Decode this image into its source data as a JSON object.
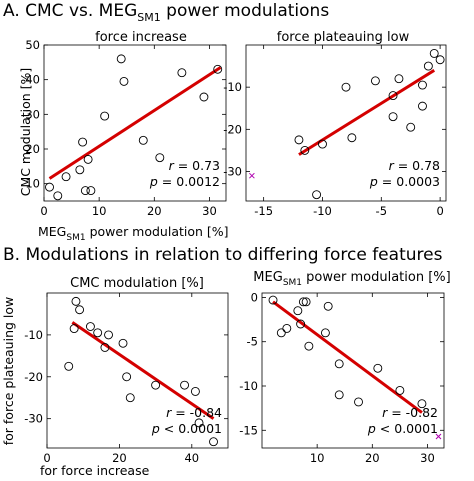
{
  "section_a_title": "A. CMC vs. MEG",
  "section_a_sub": "SM1",
  "section_a_title_rest": " power modulations",
  "section_b_title": "B. Modulations in relation to differing force features",
  "ylabel_a": "CMC modulation [%]",
  "xlabel_a_main": "MEG",
  "xlabel_a_sub": "SM1",
  "xlabel_a_rest": " power modulation [%]",
  "ylabel_b_line1": "for force plateauing low",
  "xlabel_b": "for force increase",
  "chart_data": [
    {
      "id": "a1",
      "type": "scatter",
      "title": "force increase",
      "xlim": [
        0,
        33
      ],
      "ylim": [
        5,
        50
      ],
      "xticks": [
        0,
        10,
        20,
        30
      ],
      "yticks": [
        10,
        20,
        30,
        40,
        50
      ],
      "points": [
        [
          1,
          9
        ],
        [
          2.5,
          6.5
        ],
        [
          4,
          12
        ],
        [
          6.5,
          14
        ],
        [
          7,
          22
        ],
        [
          7.5,
          8
        ],
        [
          8,
          17
        ],
        [
          8.5,
          8
        ],
        [
          11,
          29.5
        ],
        [
          14,
          46
        ],
        [
          14.5,
          39.5
        ],
        [
          18,
          22.5
        ],
        [
          21,
          17.5
        ],
        [
          25,
          42
        ],
        [
          29,
          35
        ],
        [
          31.5,
          43
        ]
      ],
      "fit": [
        [
          1,
          11.5
        ],
        [
          32,
          43.5
        ]
      ],
      "stats": {
        "r": "0.73",
        "p": "0.0012"
      }
    },
    {
      "id": "a2",
      "type": "scatter",
      "title": "force plateauing low",
      "xlim": [
        -16.5,
        0.5
      ],
      "ylim": [
        -37,
        0
      ],
      "xticks": [
        -15,
        -10,
        -5,
        0
      ],
      "yticks": [
        -10,
        -20,
        -30
      ],
      "points": [
        [
          -12,
          -22.5
        ],
        [
          -11.5,
          -25
        ],
        [
          -10.5,
          -35.5
        ],
        [
          -10,
          -23.5
        ],
        [
          -8,
          -10
        ],
        [
          -7.5,
          -22
        ],
        [
          -5.5,
          -8.5
        ],
        [
          -4,
          -17
        ],
        [
          -4,
          -12
        ],
        [
          -3.5,
          -8
        ],
        [
          -2.5,
          -19.5
        ],
        [
          -1.5,
          -14.5
        ],
        [
          -1.5,
          -9.5
        ],
        [
          -1,
          -5
        ],
        [
          -0.5,
          -2
        ],
        [
          0,
          -3.5
        ]
      ],
      "outliers": [
        [
          -16,
          -31
        ]
      ],
      "fit": [
        [
          -12,
          -26
        ],
        [
          -0.5,
          -6
        ]
      ],
      "stats": {
        "r": "0.78",
        "p": "0.0003"
      }
    },
    {
      "id": "b1",
      "type": "scatter",
      "title": "CMC modulation [%]",
      "xlim": [
        0,
        50
      ],
      "ylim": [
        -37,
        0
      ],
      "xticks": [
        0,
        20,
        40
      ],
      "yticks": [
        -10,
        -20,
        -30
      ],
      "points": [
        [
          6,
          -17.5
        ],
        [
          7.5,
          -8.5
        ],
        [
          8,
          -2
        ],
        [
          9,
          -4
        ],
        [
          12,
          -8
        ],
        [
          14,
          -9.5
        ],
        [
          16,
          -13
        ],
        [
          17,
          -10
        ],
        [
          21,
          -12
        ],
        [
          22,
          -20
        ],
        [
          23,
          -25
        ],
        [
          30,
          -22
        ],
        [
          38,
          -22
        ],
        [
          41,
          -23.5
        ],
        [
          42,
          -31
        ],
        [
          46,
          -35.5
        ]
      ],
      "fit": [
        [
          7,
          -7
        ],
        [
          46,
          -30
        ]
      ],
      "stats": {
        "r": "-0.84",
        "p": "< 0.0001"
      }
    },
    {
      "id": "b2",
      "type": "scatter",
      "title_main": "MEG",
      "title_sub": "SM1",
      "title_rest": " power modulation [%]",
      "xlim": [
        0,
        33
      ],
      "ylim": [
        -17,
        0.5
      ],
      "xticks": [
        10,
        20,
        30
      ],
      "yticks": [
        0,
        -5,
        -10,
        -15
      ],
      "points": [
        [
          2,
          -0.3
        ],
        [
          3.5,
          -4
        ],
        [
          4.5,
          -3.5
        ],
        [
          6.5,
          -1.5
        ],
        [
          7,
          -3
        ],
        [
          7.5,
          -0.5
        ],
        [
          8,
          -0.5
        ],
        [
          8.5,
          -5.5
        ],
        [
          11.5,
          -4
        ],
        [
          12,
          -1
        ],
        [
          14,
          -7.5
        ],
        [
          14,
          -11
        ],
        [
          17.5,
          -11.8
        ],
        [
          21,
          -8
        ],
        [
          25,
          -10.5
        ],
        [
          29,
          -12
        ]
      ],
      "outliers": [
        [
          32,
          -15.7
        ]
      ],
      "fit": [
        [
          2,
          -0.5
        ],
        [
          29,
          -13
        ]
      ],
      "stats": {
        "r": "-0.82",
        "p": "< 0.0001"
      }
    }
  ]
}
